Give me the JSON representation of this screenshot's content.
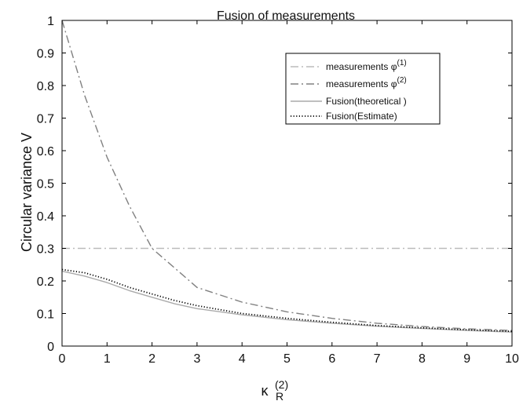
{
  "chart_data": {
    "type": "line",
    "title": "Fusion of measurements",
    "ylabel": "Circular variance V",
    "xlabel": {
      "base": "κ",
      "sub": "R",
      "sup": "(2)"
    },
    "xlim": [
      0,
      10
    ],
    "ylim": [
      0,
      1
    ],
    "xticks": [
      0,
      1,
      2,
      3,
      4,
      5,
      6,
      7,
      8,
      9,
      10
    ],
    "yticks": [
      0,
      0.1,
      0.2,
      0.3,
      0.4,
      0.5,
      0.6,
      0.7,
      0.8,
      0.9,
      1
    ],
    "grid": false,
    "legend_position": "top-right",
    "series": [
      {
        "name": "measurements φ",
        "name_sup": "(1)",
        "color": "#bbbbbb",
        "style": "dashdot",
        "x": [
          0,
          10
        ],
        "y": [
          0.3,
          0.3
        ]
      },
      {
        "name": "measurements φ",
        "name_sup": "(2)",
        "color": "#808080",
        "style": "dashdot",
        "x": [
          0,
          0.5,
          1,
          1.5,
          2,
          2.5,
          3,
          4,
          5,
          6,
          7,
          8,
          9,
          10
        ],
        "y": [
          1.0,
          0.77,
          0.58,
          0.43,
          0.3,
          0.24,
          0.18,
          0.135,
          0.105,
          0.085,
          0.07,
          0.06,
          0.053,
          0.048
        ]
      },
      {
        "name": "Fusion(theoretical )",
        "color": "#aaaaaa",
        "style": "solid",
        "x": [
          0,
          0.5,
          1,
          1.5,
          2,
          2.5,
          3,
          4,
          5,
          6,
          7,
          8,
          9,
          10
        ],
        "y": [
          0.23,
          0.215,
          0.195,
          0.17,
          0.15,
          0.13,
          0.115,
          0.096,
          0.081,
          0.07,
          0.061,
          0.054,
          0.048,
          0.043
        ]
      },
      {
        "name": "Fusion(Estimate)",
        "color": "#000000",
        "style": "dotted",
        "x": [
          0,
          0.5,
          1,
          1.5,
          2,
          2.5,
          3,
          4,
          5,
          6,
          7,
          8,
          9,
          10
        ],
        "y": [
          0.235,
          0.225,
          0.205,
          0.18,
          0.16,
          0.14,
          0.124,
          0.1,
          0.085,
          0.073,
          0.063,
          0.056,
          0.05,
          0.045
        ]
      }
    ]
  }
}
